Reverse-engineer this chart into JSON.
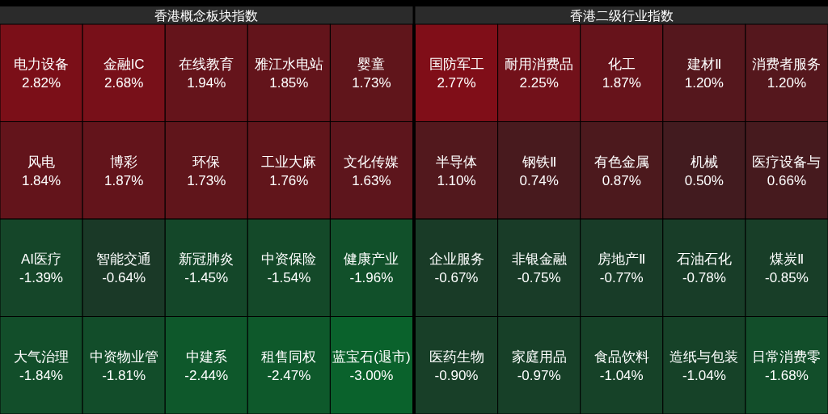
{
  "chart_data": [
    {
      "type": "other",
      "title": "香港概念板块指数",
      "categories": [
        "电力设备",
        "金融IC",
        "在线教育",
        "雅江水电站",
        "婴童",
        "风电",
        "博彩",
        "环保",
        "工业大麻",
        "文化传媒",
        "AI医疗",
        "智能交通",
        "新冠肺炎",
        "中资保险",
        "健康产业",
        "大气治理",
        "中资物业管",
        "中建系",
        "租售同权",
        "蓝宝石(退市)"
      ],
      "values": [
        2.82,
        2.68,
        1.94,
        1.85,
        1.73,
        1.84,
        1.87,
        1.73,
        1.76,
        1.63,
        -1.39,
        -0.64,
        -1.45,
        -1.54,
        -1.96,
        -1.84,
        -1.81,
        -2.44,
        -2.47,
        -3.0
      ],
      "value_labels": [
        "2.82%",
        "2.68%",
        "1.94%",
        "1.85%",
        "1.73%",
        "1.84%",
        "1.87%",
        "1.73%",
        "1.76%",
        "1.63%",
        "-1.39%",
        "-0.64%",
        "-1.45%",
        "-1.54%",
        "-1.96%",
        "-1.84%",
        "-1.81%",
        "-2.44%",
        "-2.47%",
        "-3.00%"
      ]
    },
    {
      "type": "other",
      "title": "香港二级行业指数",
      "categories": [
        "国防军工",
        "耐用消费品",
        "化工",
        "建材Ⅱ",
        "消费者服务",
        "半导体",
        "钢铁Ⅱ",
        "有色金属",
        "机械",
        "医疗设备与",
        "企业服务",
        "非银金融",
        "房地产Ⅱ",
        "石油石化",
        "煤炭Ⅱ",
        "医药生物",
        "家庭用品",
        "食品饮料",
        "造纸与包装",
        "日常消费零"
      ],
      "values": [
        2.77,
        2.25,
        1.87,
        1.2,
        1.2,
        1.1,
        0.74,
        0.87,
        0.5,
        0.66,
        -0.67,
        -0.75,
        -0.77,
        -0.78,
        -0.85,
        -0.9,
        -0.97,
        -1.04,
        -1.04,
        -1.68
      ],
      "value_labels": [
        "2.77%",
        "2.25%",
        "1.87%",
        "1.20%",
        "1.20%",
        "1.10%",
        "0.74%",
        "0.87%",
        "0.50%",
        "0.66%",
        "-0.67%",
        "-0.75%",
        "-0.77%",
        "-0.78%",
        "-0.85%",
        "-0.90%",
        "-0.97%",
        "-1.04%",
        "-1.04%",
        "-1.68%"
      ]
    }
  ]
}
